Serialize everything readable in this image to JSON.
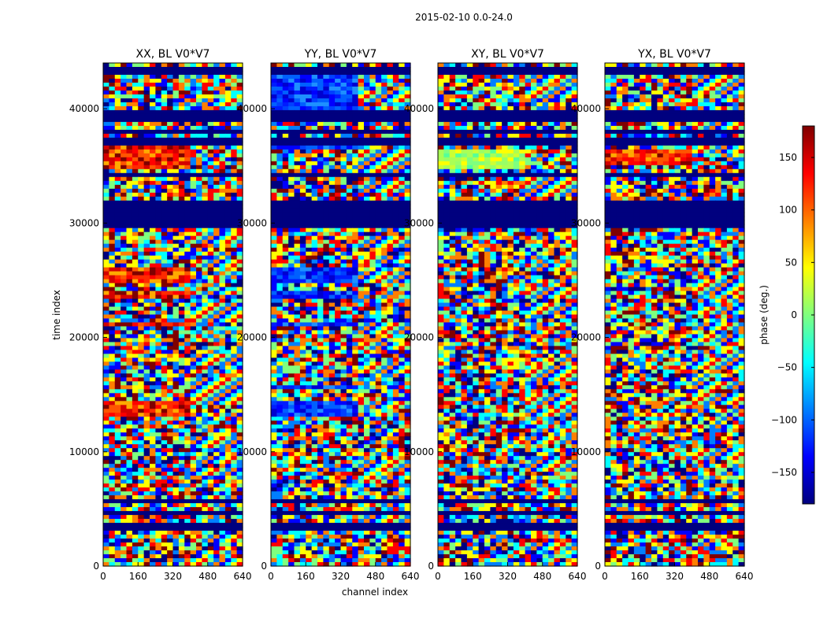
{
  "chart_data": {
    "type": "heatmap",
    "title": "2015-02-10 0.0-24.0",
    "xlabel": "channel index",
    "ylabel": "time index",
    "xlim": [
      0,
      640
    ],
    "ylim": [
      0,
      44000
    ],
    "xticks": [
      "0",
      "160",
      "320",
      "480",
      "640"
    ],
    "yticks": [
      "0",
      "10000",
      "20000",
      "30000",
      "40000"
    ],
    "panels": [
      {
        "title": "XX, BL V0*V7",
        "bias": "red",
        "bias_bands": [
          [
            13000,
            14400
          ],
          [
            15300,
            15600
          ],
          [
            20900,
            21300
          ],
          [
            23500,
            24200
          ],
          [
            24900,
            26000
          ],
          [
            34800,
            36800
          ]
        ]
      },
      {
        "title": "YY, BL V0*V7",
        "bias": "blue",
        "bias_bands": [
          [
            12900,
            14300
          ],
          [
            15300,
            15700
          ],
          [
            20900,
            21300
          ],
          [
            23500,
            24200
          ],
          [
            24900,
            26000
          ],
          [
            36500,
            36800
          ],
          [
            38900,
            43000
          ]
        ]
      },
      {
        "title": "XY, BL V0*V7",
        "bias": "green",
        "bias_bands": [
          [
            34800,
            36600
          ]
        ]
      },
      {
        "title": "YX, BL V0*V7",
        "bias": "red",
        "bias_bands": [
          [
            35000,
            36600
          ]
        ]
      }
    ],
    "flagged_bands": [
      [
        3200,
        3800
      ],
      [
        4500,
        4700
      ],
      [
        5600,
        5900
      ],
      [
        29700,
        32000
      ],
      [
        34000,
        34300
      ],
      [
        36900,
        37300
      ],
      [
        37700,
        38200
      ],
      [
        39000,
        40000
      ],
      [
        43000,
        43500
      ]
    ],
    "colorbar": {
      "label": "phase (deg.)",
      "range": [
        -180,
        180
      ],
      "ticks": [
        "150",
        "100",
        "50",
        "0",
        "−50",
        "−100",
        "−150"
      ],
      "tick_values": [
        150,
        100,
        50,
        0,
        -50,
        -100,
        -150
      ],
      "colormap": "jet"
    }
  },
  "colors": {
    "flagged": "#00007f",
    "jet": [
      "#00007f",
      "#0000ff",
      "#007fff",
      "#00ffff",
      "#7fff7f",
      "#ffff00",
      "#ff7f00",
      "#ff0000",
      "#7f0000"
    ]
  }
}
